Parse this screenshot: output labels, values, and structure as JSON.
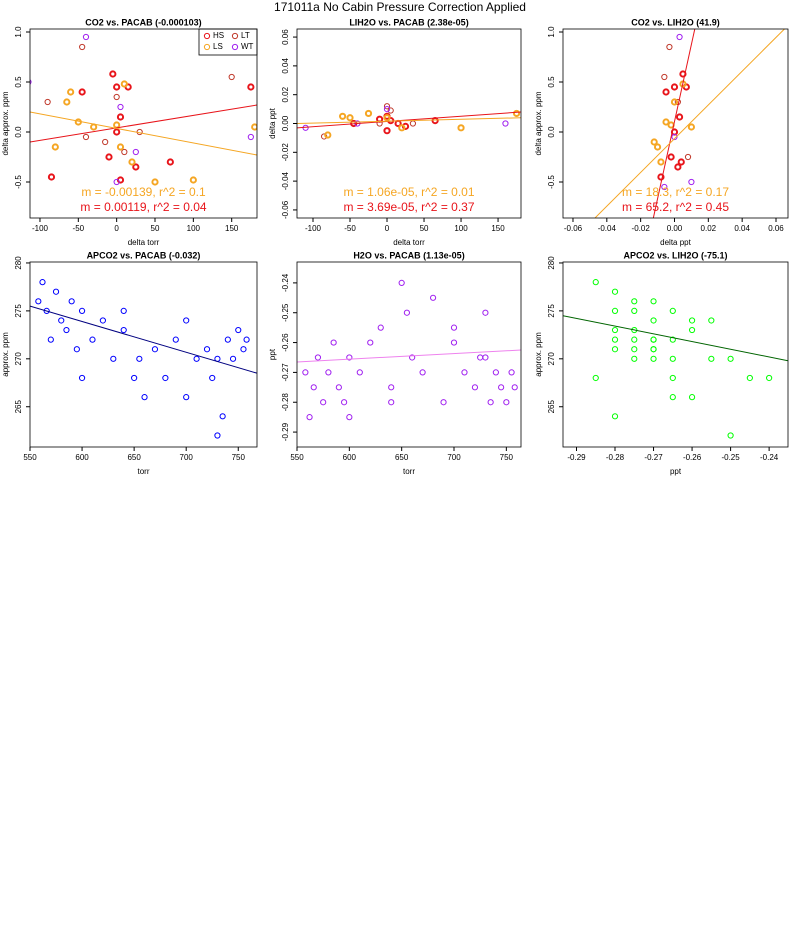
{
  "title": "171011a   No Cabin Pressure Correction Applied",
  "chart_data": [
    {
      "type": "scatter",
      "title": "CO2 vs. PACAB (-0.000103)",
      "xlabel": "delta torr",
      "ylabel": "delta approx. ppm",
      "xlim": [
        -113,
        183
      ],
      "xticks": [
        -100,
        -50,
        0,
        50,
        100,
        150
      ],
      "ylim": [
        -0.86,
        1.03
      ],
      "yticks": [
        -0.5,
        {
          "value": 0,
          "label": "0.0"
        },
        0.5,
        {
          "value": 1,
          "label": "1.0"
        }
      ],
      "legend": "topright",
      "series": [
        {
          "name": "HS",
          "color": "#e8141a",
          "stroke_width": 2,
          "x": [
            -85,
            -45,
            -5,
            0,
            15,
            5,
            -10,
            25,
            70,
            175,
            5,
            0
          ],
          "y": [
            -0.45,
            0.4,
            0.58,
            0.45,
            0.45,
            0.15,
            -0.25,
            -0.35,
            -0.3,
            0.45,
            -0.48,
            0.0
          ]
        },
        {
          "name": "LT",
          "color": "#c0392b",
          "stroke_width": 1,
          "x": [
            -45,
            -90,
            0,
            -15,
            10,
            30,
            150,
            -40
          ],
          "y": [
            0.85,
            0.3,
            0.35,
            -0.1,
            -0.2,
            0.0,
            0.55,
            -0.05
          ]
        },
        {
          "name": "LS",
          "color": "#f5a623",
          "stroke_width": 2,
          "x": [
            -60,
            -65,
            -50,
            -30,
            0,
            5,
            10,
            20,
            50,
            100,
            180,
            -80
          ],
          "y": [
            0.4,
            0.3,
            0.1,
            0.05,
            0.07,
            -0.15,
            0.48,
            -0.3,
            -0.5,
            -0.48,
            0.05,
            -0.15
          ]
        },
        {
          "name": "WT",
          "color": "#a020f0",
          "stroke_width": 1,
          "x": [
            -115,
            -40,
            0,
            175,
            25,
            5
          ],
          "y": [
            0.5,
            0.95,
            -0.5,
            -0.05,
            -0.2,
            0.25
          ]
        }
      ],
      "lines": [
        {
          "color": "#e8141a",
          "x": [
            -113,
            183
          ],
          "y": [
            -0.1,
            0.27
          ]
        },
        {
          "color": "#f5a623",
          "x": [
            -113,
            183
          ],
          "y": [
            0.2,
            -0.23
          ]
        }
      ],
      "annotations": [
        {
          "text": "m = -0.00139, r^2 = 0.1",
          "color": "#f5a623"
        },
        {
          "text": "m = 0.00119, r^2 = 0.04",
          "color": "#e8141a"
        }
      ]
    },
    {
      "type": "scatter",
      "title": "LIH2O vs. PACAB (2.38e-05)",
      "xlabel": "delta torr",
      "ylabel": "delta ppt",
      "xlim": [
        -121.6,
        181
      ],
      "xticks": [
        -100,
        -50,
        0,
        50,
        100,
        150
      ],
      "ylim": [
        -0.0656,
        0.0656
      ],
      "yticks": [
        -0.06,
        -0.04,
        -0.02,
        {
          "value": 0,
          "label": "0.00"
        },
        0.02,
        0.04,
        0.06
      ],
      "series": [
        {
          "name": "HS",
          "color": "#e8141a",
          "stroke_width": 2,
          "x": [
            -45,
            0,
            5,
            15,
            25,
            65,
            0,
            -10
          ],
          "y": [
            0.0,
            -0.005,
            0.002,
            0.0,
            -0.002,
            0.002,
            0.005,
            0.003
          ]
        },
        {
          "name": "LT",
          "color": "#c0392b",
          "stroke_width": 1,
          "x": [
            -85,
            0,
            35,
            -10,
            5
          ],
          "y": [
            -0.009,
            0.012,
            0.0,
            0.0,
            0.009
          ]
        },
        {
          "name": "LS",
          "color": "#f5a623",
          "stroke_width": 2,
          "x": [
            -60,
            -80,
            -25,
            0,
            20,
            100,
            175,
            -50
          ],
          "y": [
            0.005,
            -0.008,
            0.007,
            0.004,
            -0.003,
            -0.003,
            0.007,
            0.004
          ]
        },
        {
          "name": "WT",
          "color": "#a020f0",
          "stroke_width": 1,
          "x": [
            -110,
            -40,
            160,
            0
          ],
          "y": [
            -0.003,
            0.0,
            0.0,
            0.01
          ]
        }
      ],
      "lines": [
        {
          "color": "#e8141a",
          "x": [
            -121.6,
            181
          ],
          "y": [
            -0.003,
            0.008
          ]
        },
        {
          "color": "#f5a623",
          "x": [
            -121.6,
            181
          ],
          "y": [
            0.0,
            0.004
          ]
        }
      ],
      "annotations": [
        {
          "text": "m = 1.06e-05, r^2 = 0.01",
          "color": "#f5a623"
        },
        {
          "text": "m = 3.69e-05, r^2 = 0.37",
          "color": "#e8141a"
        }
      ]
    },
    {
      "type": "scatter",
      "title": "CO2 vs. LIH2O (41.9)",
      "xlabel": "delta ppt",
      "ylabel": "delta approx. ppm",
      "xlim": [
        -0.0659,
        0.0671
      ],
      "xticks": [
        -0.06,
        -0.04,
        -0.02,
        {
          "value": 0,
          "label": "0.00"
        },
        0.02,
        0.04,
        0.06
      ],
      "ylim": [
        -0.86,
        1.03
      ],
      "yticks": [
        -0.5,
        {
          "value": 0,
          "label": "0.0"
        },
        0.5,
        {
          "value": 1,
          "label": "1.0"
        }
      ],
      "series": [
        {
          "name": "HS",
          "color": "#e8141a",
          "stroke_width": 2,
          "x": [
            0,
            0.005,
            -0.005,
            0.003,
            -0.002,
            0.002,
            -0.008,
            0.007,
            0,
            0.004
          ],
          "y": [
            0.45,
            0.58,
            0.4,
            0.15,
            -0.25,
            -0.35,
            -0.45,
            0.45,
            0.0,
            -0.3
          ]
        },
        {
          "name": "LT",
          "color": "#c0392b",
          "stroke_width": 1,
          "x": [
            -0.003,
            0.008,
            -0.006,
            0.002
          ],
          "y": [
            0.85,
            -0.25,
            0.55,
            0.3
          ]
        },
        {
          "name": "LS",
          "color": "#f5a623",
          "stroke_width": 2,
          "x": [
            0,
            -0.005,
            -0.01,
            0.005,
            -0.008,
            0.01,
            -0.002,
            -0.012
          ],
          "y": [
            0.3,
            0.1,
            -0.15,
            0.48,
            -0.3,
            0.05,
            0.07,
            -0.1
          ]
        },
        {
          "name": "WT",
          "color": "#a020f0",
          "stroke_width": 1,
          "x": [
            0.003,
            0.01,
            0,
            -0.006
          ],
          "y": [
            0.95,
            -0.5,
            -0.05,
            -0.55
          ]
        }
      ],
      "lines": [
        {
          "color": "#e8141a",
          "x": [
            -0.0125,
            0.012
          ],
          "y": [
            -0.86,
            1.03
          ]
        },
        {
          "color": "#f5a623",
          "x": [
            -0.047,
            0.065
          ],
          "y": [
            -0.86,
            1.03
          ]
        }
      ],
      "annotations": [
        {
          "text": "m = 18.3, r^2 = 0.17",
          "color": "#f5a623"
        },
        {
          "text": "m = 65.2, r^2 = 0.45",
          "color": "#e8141a"
        }
      ]
    },
    {
      "type": "scatter",
      "title": "APCO2 vs. PACAB (-0.032)",
      "xlabel": "torr",
      "ylabel": "approx. ppm",
      "xlim": [
        550,
        768
      ],
      "xticks": [
        550,
        600,
        650,
        700,
        750
      ],
      "ylim": [
        260.8,
        280.1
      ],
      "yticks": [
        265,
        270,
        275,
        280
      ],
      "series": [
        {
          "color": "#0000ff",
          "stroke_width": 1,
          "x": [
            558,
            562,
            566,
            570,
            575,
            580,
            585,
            590,
            595,
            600,
            610,
            620,
            630,
            640,
            650,
            655,
            660,
            670,
            680,
            690,
            700,
            710,
            720,
            725,
            730,
            735,
            740,
            745,
            750,
            755,
            758,
            600,
            640,
            700,
            730
          ],
          "y": [
            276,
            278,
            275,
            272,
            277,
            274,
            273,
            276,
            271,
            275,
            272,
            274,
            270,
            273,
            268,
            270,
            266,
            271,
            268,
            272,
            266,
            270,
            271,
            268,
            262,
            264,
            272,
            270,
            273,
            271,
            272,
            268,
            275,
            274,
            270
          ]
        }
      ],
      "lines": [
        {
          "color": "#000080",
          "x": [
            550,
            768
          ],
          "y": [
            275.5,
            268.5
          ]
        }
      ]
    },
    {
      "type": "scatter",
      "title": "H2O vs. PACAB (1.13e-05)",
      "xlabel": "torr",
      "ylabel": "ppt",
      "xlim": [
        550,
        764
      ],
      "xticks": [
        550,
        600,
        650,
        700,
        750
      ],
      "ylim": [
        -0.295,
        -0.233
      ],
      "yticks": [
        -0.29,
        -0.28,
        -0.27,
        -0.26,
        -0.25,
        -0.24
      ],
      "series": [
        {
          "color": "#a020f0",
          "stroke_width": 1,
          "x": [
            558,
            562,
            566,
            570,
            575,
            580,
            585,
            590,
            595,
            600,
            610,
            620,
            630,
            640,
            650,
            655,
            660,
            670,
            680,
            690,
            700,
            710,
            720,
            725,
            730,
            735,
            740,
            745,
            750,
            755,
            758,
            600,
            640,
            700,
            730
          ],
          "y": [
            -0.27,
            -0.285,
            -0.275,
            -0.265,
            -0.28,
            -0.27,
            -0.26,
            -0.275,
            -0.28,
            -0.265,
            -0.27,
            -0.26,
            -0.255,
            -0.275,
            -0.24,
            -0.25,
            -0.265,
            -0.27,
            -0.245,
            -0.28,
            -0.26,
            -0.27,
            -0.275,
            -0.265,
            -0.25,
            -0.28,
            -0.27,
            -0.275,
            -0.28,
            -0.27,
            -0.275,
            -0.285,
            -0.28,
            -0.255,
            -0.265
          ]
        }
      ],
      "lines": [
        {
          "color": "#ee82ee",
          "x": [
            550,
            764
          ],
          "y": [
            -0.2665,
            -0.2625
          ]
        }
      ]
    },
    {
      "type": "scatter",
      "title": "APCO2 vs. LIH2O (-75.1)",
      "xlabel": "ppt",
      "ylabel": "approx. ppm",
      "xlim": [
        -0.2935,
        -0.2351
      ],
      "xticks": [
        -0.29,
        -0.28,
        -0.27,
        -0.26,
        -0.25,
        -0.24
      ],
      "ylim": [
        260.8,
        280.1
      ],
      "yticks": [
        265,
        270,
        275,
        280
      ],
      "series": [
        {
          "color": "#00ff00",
          "stroke_width": 1,
          "x": [
            -0.27,
            -0.285,
            -0.275,
            -0.265,
            -0.28,
            -0.27,
            -0.26,
            -0.275,
            -0.28,
            -0.265,
            -0.27,
            -0.26,
            -0.255,
            -0.275,
            -0.24,
            -0.25,
            -0.265,
            -0.27,
            -0.245,
            -0.28,
            -0.26,
            -0.27,
            -0.275,
            -0.265,
            -0.25,
            -0.28,
            -0.27,
            -0.275,
            -0.28,
            -0.27,
            -0.275,
            -0.285,
            -0.28,
            -0.255,
            -0.265
          ],
          "y": [
            276,
            278,
            275,
            272,
            277,
            274,
            273,
            276,
            271,
            275,
            272,
            274,
            270,
            273,
            268,
            270,
            266,
            271,
            268,
            272,
            266,
            270,
            271,
            268,
            262,
            264,
            272,
            270,
            273,
            271,
            272,
            268,
            275,
            274,
            270
          ]
        }
      ],
      "lines": [
        {
          "color": "#006400",
          "x": [
            -0.2935,
            -0.2351
          ],
          "y": [
            274.5,
            269.8
          ]
        }
      ]
    }
  ]
}
